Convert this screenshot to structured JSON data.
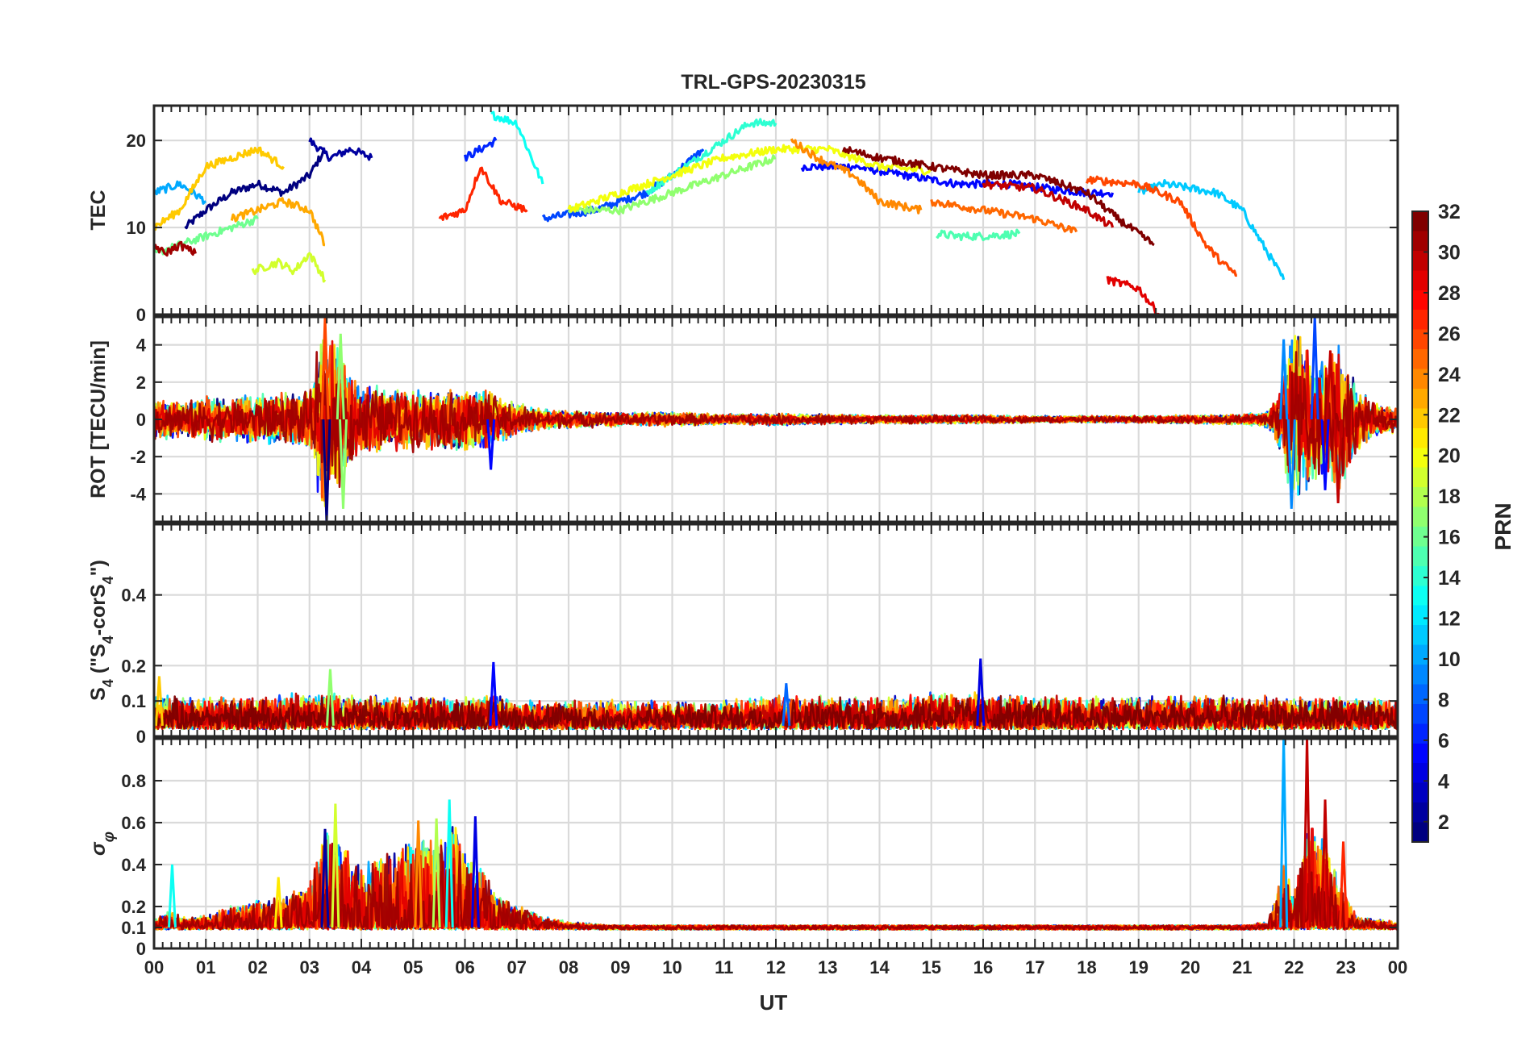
{
  "chart_data": {
    "type": "line",
    "title": "TRL-GPS-20230315",
    "xlabel": "UT",
    "xlim": [
      0,
      24
    ],
    "x_ticks": [
      "00",
      "01",
      "02",
      "03",
      "04",
      "05",
      "06",
      "07",
      "08",
      "09",
      "10",
      "11",
      "12",
      "13",
      "14",
      "15",
      "16",
      "17",
      "18",
      "19",
      "20",
      "21",
      "22",
      "23",
      "00"
    ],
    "colorbar": {
      "label": "PRN",
      "range": [
        1,
        32
      ],
      "ticks": [
        "2",
        "4",
        "6",
        "8",
        "10",
        "12",
        "14",
        "16",
        "18",
        "20",
        "22",
        "24",
        "26",
        "28",
        "30",
        "32"
      ],
      "colormap": "jet"
    },
    "panels": [
      {
        "id": "tec",
        "ylabel": "TEC",
        "ylim": [
          0,
          24
        ],
        "y_ticks": [
          0,
          10,
          20
        ],
        "y_tick_labels": [
          "0",
          "10",
          "20"
        ],
        "series": [
          {
            "prn": 1,
            "x": [
              0.6,
              1.0,
              1.5,
              2.0,
              2.5,
              3.0,
              3.3
            ],
            "y": [
              10,
              12,
              14,
              15,
              14,
              16,
              19
            ]
          },
          {
            "prn": 2,
            "x": [
              3.0,
              3.4,
              3.8,
              4.2
            ],
            "y": [
              20,
              18,
              19,
              18
            ]
          },
          {
            "prn": 5,
            "x": [
              12.5,
              13.5,
              14.5,
              15.5,
              16.5,
              17.2,
              18.0,
              18.5
            ],
            "y": [
              17,
              17,
              16,
              15,
              15,
              14.5,
              14,
              14
            ]
          },
          {
            "prn": 6,
            "x": [
              6.0,
              6.3,
              6.6
            ],
            "y": [
              18,
              19,
              20
            ]
          },
          {
            "prn": 7,
            "x": [
              7.5,
              8.5,
              9.5,
              10.0,
              10.6
            ],
            "y": [
              11,
              12,
              14,
              16,
              19
            ]
          },
          {
            "prn": 10,
            "x": [
              0.0,
              0.5,
              1.0
            ],
            "y": [
              14,
              15,
              13
            ]
          },
          {
            "prn": 11,
            "x": [
              19.0,
              19.5,
              20.0,
              20.5,
              21.0,
              21.3,
              21.6,
              21.8
            ],
            "y": [
              14,
              15,
              14.5,
              14,
              12,
              9,
              6,
              4
            ]
          },
          {
            "prn": 13,
            "x": [
              6.5,
              7.0,
              7.5
            ],
            "y": [
              23,
              22,
              15
            ]
          },
          {
            "prn": 14,
            "x": [
              9.5,
              10.5,
              11.5,
              12.0
            ],
            "y": [
              14,
              18,
              22,
              22
            ]
          },
          {
            "prn": 15,
            "x": [
              15.1,
              15.5,
              16.0,
              16.7
            ],
            "y": [
              9.3,
              9.0,
              9.0,
              9.3
            ]
          },
          {
            "prn": 16,
            "x": [
              0.0,
              0.5,
              1.0,
              1.5,
              2.0
            ],
            "y": [
              7,
              8,
              9,
              10,
              11
            ]
          },
          {
            "prn": 17,
            "x": [
              8.0,
              9.0,
              10.0,
              11.0,
              12.0
            ],
            "y": [
              12,
              12,
              14,
              16,
              18
            ]
          },
          {
            "prn": 19,
            "x": [
              1.9,
              2.4,
              2.7,
              3.0,
              3.3
            ],
            "y": [
              5,
              6,
              5,
              7,
              4
            ]
          },
          {
            "prn": 20,
            "x": [
              8.0,
              9.0,
              10.0,
              11.0,
              12.0,
              13.0,
              14.0,
              15.0
            ],
            "y": [
              12,
              14,
              16,
              18,
              19,
              19,
              17,
              16.5
            ]
          },
          {
            "prn": 22,
            "x": [
              0.0,
              0.5,
              1.0,
              1.5,
              2.0,
              2.5
            ],
            "y": [
              10,
              12,
              17,
              18,
              19,
              17
            ]
          },
          {
            "prn": 23,
            "x": [
              1.5,
              2.0,
              2.5,
              3.0,
              3.3
            ],
            "y": [
              11,
              12,
              13,
              12,
              8
            ]
          },
          {
            "prn": 24,
            "x": [
              12.3,
              12.8,
              13.5,
              14.0,
              14.8
            ],
            "y": [
              20,
              18,
              16,
              13,
              12
            ]
          },
          {
            "prn": 25,
            "x": [
              15.0,
              16.0,
              17.0,
              17.8
            ],
            "y": [
              13,
              12,
              11,
              9.5
            ]
          },
          {
            "prn": 26,
            "x": [
              18.0,
              19.0,
              19.8,
              20.3,
              20.6,
              20.9
            ],
            "y": [
              15.5,
              15,
              13,
              8,
              6,
              4.5
            ]
          },
          {
            "prn": 27,
            "x": [
              5.5,
              6.0,
              6.3,
              6.7,
              7.2
            ],
            "y": [
              11,
              12,
              17,
              13,
              12
            ]
          },
          {
            "prn": 29,
            "x": [
              18.4,
              19.0,
              19.4
            ],
            "y": [
              4,
              3,
              0
            ]
          },
          {
            "prn": 30,
            "x": [
              16.0,
              17.0,
              18.0,
              18.5
            ],
            "y": [
              15,
              14.5,
              12,
              10
            ]
          },
          {
            "prn": 31,
            "x": [
              0.0,
              0.2,
              0.5,
              0.8
            ],
            "y": [
              8,
              7,
              8,
              7
            ]
          },
          {
            "prn": 32,
            "x": [
              13.3,
              14.0,
              15.0,
              16.0,
              17.0,
              18.0,
              18.6,
              19.3
            ],
            "y": [
              19,
              18,
              17,
              16,
              16,
              14,
              11,
              8
            ]
          }
        ]
      },
      {
        "id": "rot",
        "ylabel": "ROT [TECU/min]",
        "ylim": [
          -5.5,
          5.5
        ],
        "y_ticks": [
          -4,
          -2,
          0,
          2,
          4
        ],
        "y_tick_labels": [
          "-4",
          "-2",
          "0",
          "2",
          "4"
        ],
        "envelope": {
          "x": [
            0,
            0.5,
            1,
            1.5,
            2,
            2.5,
            3,
            3.25,
            3.5,
            3.75,
            4,
            4.5,
            5,
            5.5,
            6,
            6.5,
            7,
            7.5,
            8,
            9,
            10,
            11,
            12,
            13,
            14,
            15,
            16,
            17,
            18,
            19,
            20,
            21,
            21.5,
            21.8,
            22,
            22.3,
            22.6,
            22.9,
            23.2,
            23.5,
            24
          ],
          "amp": [
            1.2,
            1.0,
            1.3,
            1.2,
            1.4,
            1.5,
            1.6,
            5.5,
            4.5,
            3.0,
            2.2,
            1.8,
            1.8,
            1.7,
            1.8,
            1.6,
            0.9,
            0.6,
            0.5,
            0.4,
            0.4,
            0.3,
            0.35,
            0.3,
            0.25,
            0.25,
            0.25,
            0.2,
            0.2,
            0.2,
            0.25,
            0.3,
            0.5,
            2.5,
            5.5,
            4.0,
            3.5,
            4.5,
            2.0,
            1.0,
            0.7
          ]
        },
        "peaks": [
          {
            "x": 3.3,
            "y": 5.5,
            "prn": 26
          },
          {
            "x": 3.33,
            "y": -5.5,
            "prn": 1
          },
          {
            "x": 3.6,
            "y": 4.6,
            "prn": 17
          },
          {
            "x": 3.65,
            "y": -4.8,
            "prn": 17
          },
          {
            "x": 6.5,
            "y": -2.7,
            "prn": 5
          },
          {
            "x": 21.8,
            "y": 4.3,
            "prn": 9
          },
          {
            "x": 21.95,
            "y": -4.8,
            "prn": 9
          },
          {
            "x": 22.4,
            "y": 5.5,
            "prn": 7
          },
          {
            "x": 22.6,
            "y": -3.8,
            "prn": 5
          },
          {
            "x": 22.7,
            "y": 3.7,
            "prn": 30
          },
          {
            "x": 22.85,
            "y": -4.5,
            "prn": 30
          }
        ]
      },
      {
        "id": "s4",
        "ylabel": "S4 (\"S4-corS4\")",
        "ylabel_parts": [
          "S",
          "4",
          " (\"S",
          "4",
          "-corS",
          "4",
          "\")"
        ],
        "ylim": [
          0,
          0.6
        ],
        "y_ticks": [
          0,
          0.1,
          0.2,
          0.4
        ],
        "y_tick_labels": [
          "0",
          "0.1",
          "0.2",
          "0.4"
        ],
        "envelope": {
          "x": [
            0,
            2,
            3,
            4,
            5,
            6,
            6.5,
            7,
            8,
            9,
            10,
            11,
            12,
            13,
            14,
            15,
            16,
            17,
            18,
            19,
            20,
            21,
            22,
            23,
            24
          ],
          "amp": [
            0.08,
            0.08,
            0.09,
            0.08,
            0.08,
            0.08,
            0.09,
            0.07,
            0.07,
            0.07,
            0.07,
            0.07,
            0.08,
            0.08,
            0.08,
            0.09,
            0.09,
            0.08,
            0.08,
            0.08,
            0.08,
            0.08,
            0.08,
            0.08,
            0.07
          ]
        },
        "peaks": [
          {
            "x": 3.4,
            "y": 0.19,
            "prn": 17
          },
          {
            "x": 6.55,
            "y": 0.21,
            "prn": 5
          },
          {
            "x": 15.95,
            "y": 0.22,
            "prn": 4
          },
          {
            "x": 12.2,
            "y": 0.15,
            "prn": 8
          },
          {
            "x": 0.1,
            "y": 0.17,
            "prn": 22
          }
        ]
      },
      {
        "id": "sigma",
        "ylabel": "σφ",
        "ylabel_parts": [
          "σ",
          "φ"
        ],
        "ylim": [
          0,
          1.0
        ],
        "y_ticks": [
          0,
          0.1,
          0.2,
          0.4,
          0.6,
          0.8
        ],
        "y_tick_labels": [
          "0",
          "0.1",
          "0.2",
          "0.4",
          "0.6",
          "0.8"
        ],
        "envelope": {
          "x": [
            0,
            0.3,
            0.6,
            1,
            1.5,
            2,
            2.5,
            3,
            3.3,
            3.6,
            4,
            4.5,
            5,
            5.5,
            5.8,
            6,
            6.3,
            6.6,
            7,
            7.5,
            8,
            9,
            10,
            11,
            12,
            13,
            14,
            15,
            16,
            17,
            18,
            19,
            20,
            21,
            21.5,
            21.8,
            22,
            22.3,
            22.6,
            22.9,
            23.2,
            24
          ],
          "amp": [
            0.13,
            0.18,
            0.14,
            0.15,
            0.2,
            0.22,
            0.25,
            0.3,
            0.55,
            0.5,
            0.4,
            0.45,
            0.5,
            0.55,
            0.6,
            0.45,
            0.4,
            0.25,
            0.2,
            0.15,
            0.12,
            0.1,
            0.1,
            0.1,
            0.1,
            0.1,
            0.1,
            0.1,
            0.1,
            0.1,
            0.1,
            0.1,
            0.1,
            0.1,
            0.12,
            0.4,
            0.25,
            0.6,
            0.5,
            0.3,
            0.15,
            0.12
          ]
        },
        "peaks": [
          {
            "x": 0.35,
            "y": 0.4,
            "prn": 13
          },
          {
            "x": 2.4,
            "y": 0.34,
            "prn": 21
          },
          {
            "x": 3.3,
            "y": 0.57,
            "prn": 2
          },
          {
            "x": 3.5,
            "y": 0.69,
            "prn": 19
          },
          {
            "x": 5.1,
            "y": 0.61,
            "prn": 24
          },
          {
            "x": 5.45,
            "y": 0.62,
            "prn": 18
          },
          {
            "x": 5.7,
            "y": 0.71,
            "prn": 13
          },
          {
            "x": 6.2,
            "y": 0.63,
            "prn": 4
          },
          {
            "x": 21.8,
            "y": 1.0,
            "prn": 10
          },
          {
            "x": 22.25,
            "y": 1.0,
            "prn": 30
          },
          {
            "x": 22.6,
            "y": 0.71,
            "prn": 30
          },
          {
            "x": 22.95,
            "y": 0.51,
            "prn": 27
          }
        ]
      }
    ]
  }
}
